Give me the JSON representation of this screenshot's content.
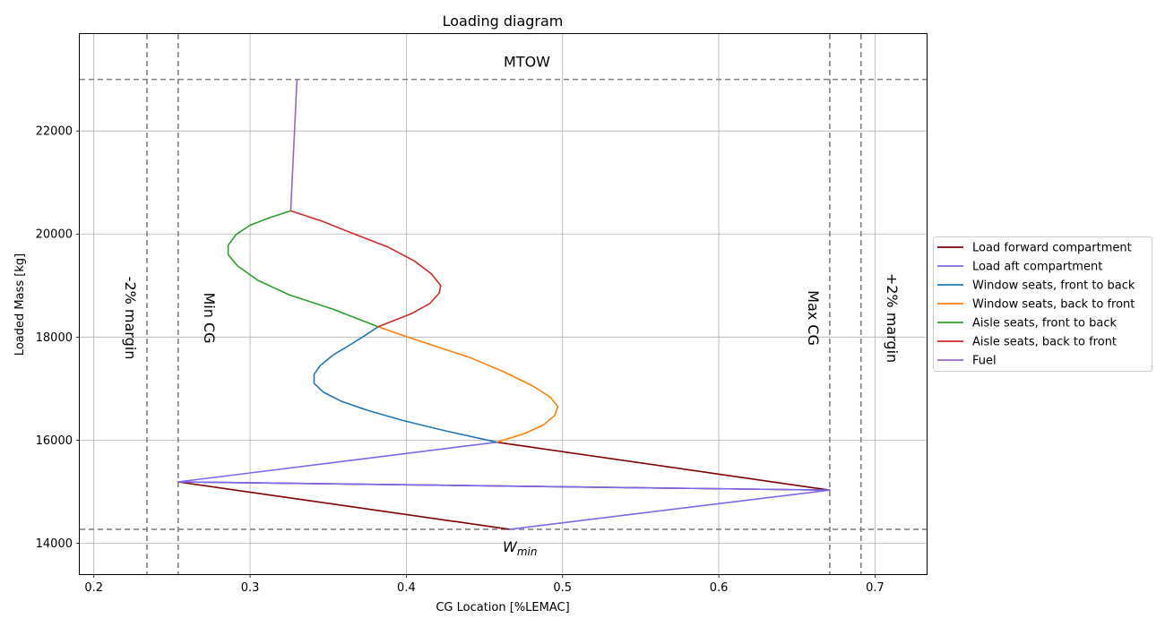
{
  "chart_data": {
    "type": "line",
    "title": "Loading diagram",
    "xlabel": "CG Location [%LEMAC]",
    "ylabel": "Loaded Mass [kg]",
    "xlim": [
      0.191,
      0.733
    ],
    "ylim": [
      13400,
      23880
    ],
    "xticks": [
      0.2,
      0.3,
      0.4,
      0.5,
      0.6,
      0.7
    ],
    "xtick_labels": [
      "0.2",
      "0.3",
      "0.4",
      "0.5",
      "0.6",
      "0.7"
    ],
    "yticks": [
      14000,
      16000,
      18000,
      20000,
      22000
    ],
    "ytick_labels": [
      "14000",
      "16000",
      "18000",
      "20000",
      "22000"
    ],
    "grid": true,
    "legend_position": "center-right outside",
    "series": [
      {
        "name": "Load forward compartment",
        "color": "#800000",
        "x": [
          0.466,
          0.254,
          0.671,
          0.458
        ],
        "y": [
          14270,
          15190,
          15030,
          15960
        ]
      },
      {
        "name": "Load aft compartment",
        "color": "#7b68ee",
        "x": [
          0.466,
          0.671,
          0.254,
          0.458
        ],
        "y": [
          14270,
          15030,
          15190,
          15960
        ]
      },
      {
        "name": "Window seats, front to back",
        "color": "#1f77b4",
        "x": [
          0.458,
          0.425,
          0.398,
          0.375,
          0.358,
          0.347,
          0.341,
          0.341,
          0.345,
          0.353,
          0.364,
          0.373,
          0.382
        ],
        "y": [
          15960,
          16180,
          16380,
          16580,
          16760,
          16930,
          17100,
          17280,
          17450,
          17650,
          17850,
          18020,
          18200
        ]
      },
      {
        "name": "Window seats, back to front",
        "color": "#ff7f0e",
        "x": [
          0.458,
          0.476,
          0.488,
          0.495,
          0.497,
          0.492,
          0.481,
          0.463,
          0.441,
          0.416,
          0.396,
          0.382
        ],
        "y": [
          15960,
          16130,
          16300,
          16480,
          16650,
          16840,
          17050,
          17320,
          17600,
          17850,
          18050,
          18200
        ]
      },
      {
        "name": "Aisle seats, front to back",
        "color": "#2ca02c",
        "x": [
          0.382,
          0.354,
          0.325,
          0.305,
          0.292,
          0.286,
          0.286,
          0.291,
          0.3,
          0.313,
          0.326
        ],
        "y": [
          18200,
          18530,
          18820,
          19100,
          19380,
          19600,
          19780,
          19990,
          20170,
          20320,
          20450
        ]
      },
      {
        "name": "Aisle seats, back to front",
        "color": "#d62728",
        "x": [
          0.382,
          0.403,
          0.415,
          0.421,
          0.422,
          0.416,
          0.405,
          0.388,
          0.365,
          0.346,
          0.326
        ],
        "y": [
          18200,
          18450,
          18650,
          18850,
          19000,
          19230,
          19480,
          19750,
          20020,
          20250,
          20450
        ]
      },
      {
        "name": "Fuel",
        "color": "#9467bd",
        "x": [
          0.326,
          0.33
        ],
        "y": [
          20450,
          23000
        ]
      }
    ],
    "reference_lines": [
      {
        "orientation": "horizontal",
        "value": 23000,
        "label": "MTOW"
      },
      {
        "orientation": "horizontal",
        "value": 14270,
        "label": "W",
        "label_sub": "min"
      },
      {
        "orientation": "vertical",
        "value": 0.234,
        "label": "-2% margin"
      },
      {
        "orientation": "vertical",
        "value": 0.254,
        "label": "Min CG"
      },
      {
        "orientation": "vertical",
        "value": 0.671,
        "label": "Max CG"
      },
      {
        "orientation": "vertical",
        "value": 0.691,
        "label": "+2% margin"
      }
    ]
  }
}
